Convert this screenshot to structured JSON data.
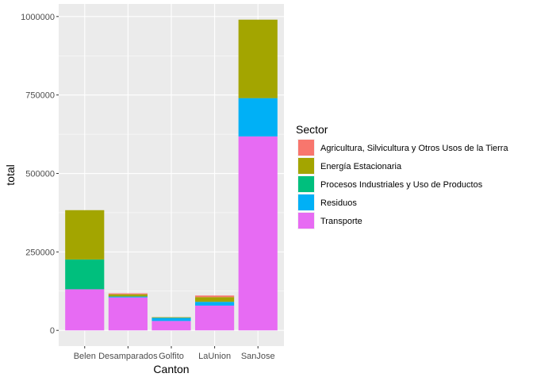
{
  "chart_data": {
    "type": "bar",
    "stacked": true,
    "xlabel": "Canton",
    "ylabel": "total",
    "ylim": [
      -50000,
      1040000
    ],
    "y_ticks": [
      0,
      250000,
      500000,
      750000,
      1000000
    ],
    "y_tick_labels": [
      "0",
      "250000",
      "500000",
      "750000",
      "1000000"
    ],
    "categories": [
      "Belen",
      "Desamparados",
      "Golfito",
      "LaUnion",
      "SanJose"
    ],
    "legend": {
      "title": "Sector",
      "position": "right"
    },
    "grid": true,
    "series": [
      {
        "name": "Agricultura, Silvicultura y Otros Usos de la Tierra",
        "color": "#F8766D",
        "values": [
          0,
          3000,
          0,
          5000,
          0
        ]
      },
      {
        "name": "Energía Estacionaria",
        "color": "#A3A500",
        "values": [
          157000,
          7000,
          2000,
          15000,
          250000
        ]
      },
      {
        "name": "Procesos Industriales y Uso de Productos",
        "color": "#00BF7D",
        "values": [
          95000,
          0,
          0,
          0,
          0
        ]
      },
      {
        "name": "Residuos",
        "color": "#00B0F6",
        "values": [
          0,
          3000,
          10000,
          12000,
          122000
        ]
      },
      {
        "name": "Transporte",
        "color": "#E76BF3",
        "values": [
          131000,
          105000,
          30000,
          79000,
          618000
        ]
      }
    ]
  }
}
